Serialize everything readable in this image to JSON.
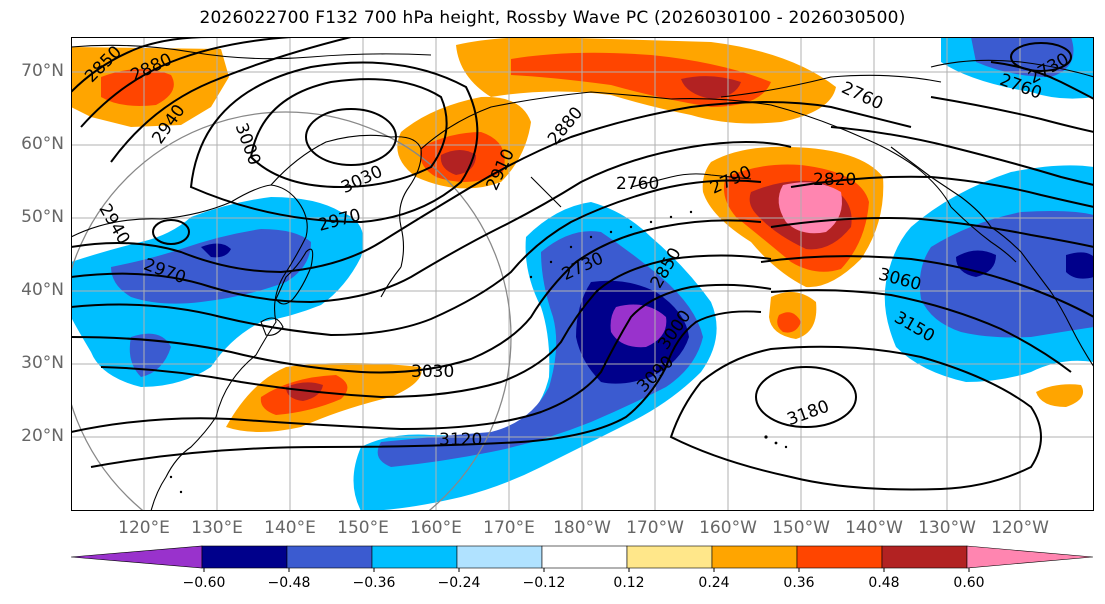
{
  "title": "2026022700 F132 700 hPa height, Rossby Wave PC (2026030100 - 2026030500)",
  "lat_labels": [
    "70°N",
    "60°N",
    "50°N",
    "40°N",
    "30°N",
    "20°N"
  ],
  "lon_labels": [
    "120°E",
    "130°E",
    "140°E",
    "150°E",
    "160°E",
    "170°E",
    "180°W",
    "170°W",
    "160°W",
    "150°W",
    "140°W",
    "130°W",
    "120°W"
  ],
  "colorbar": {
    "ticks": [
      "−0.60",
      "−0.48",
      "−0.36",
      "−0.24",
      "−0.12",
      "0.12",
      "0.24",
      "0.36",
      "0.48",
      "0.60"
    ],
    "colors": [
      "#9932CC",
      "#00008B",
      "#3B5BD0",
      "#00BFFF",
      "#B0E2FF",
      "#FFFFFF",
      "#FFE78A",
      "#FFA500",
      "#FF4500",
      "#B22222",
      "#FF85B0"
    ]
  },
  "contour_labels": [
    "2850",
    "2880",
    "2940",
    "3000",
    "3030",
    "2910",
    "2880",
    "2760",
    "2730",
    "2760",
    "2790",
    "2820",
    "2970",
    "2940",
    "2970",
    "2760",
    "2730",
    "2850",
    "3000",
    "3060",
    "3150",
    "3030",
    "3090",
    "3180",
    "3120"
  ],
  "colors": {
    "grid": "#b0b0b0",
    "axis_label": "#666666"
  }
}
